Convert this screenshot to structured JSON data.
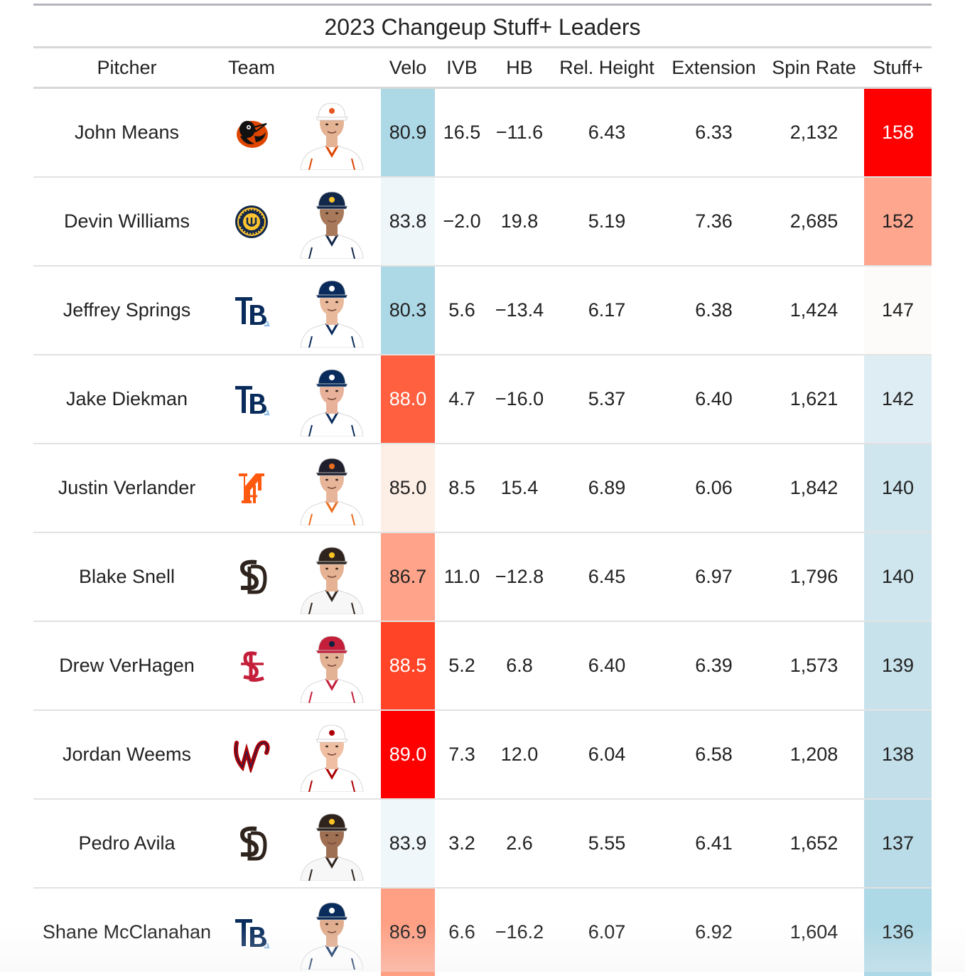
{
  "title": "2023 Changeup Stuff+ Leaders",
  "columns": {
    "pitcher": "Pitcher",
    "team": "Team",
    "headshot": "",
    "velo": "Velo",
    "ivb": "IVB",
    "hb": "HB",
    "rel_height": "Rel. Height",
    "extension": "Extension",
    "spin_rate": "Spin Rate",
    "stuff_plus": "Stuff+"
  },
  "colors": {
    "velo_scale_low": "#add8e6",
    "velo_scale_high": "#ff0000",
    "stuff_scale_low": "#add8e6",
    "stuff_scale_high": "#ff0000"
  },
  "rows": [
    {
      "pitcher": "John Means",
      "team_icon": "orioles-logo-icon",
      "velo": "80.9",
      "ivb": "16.5",
      "hb": "−11.6",
      "rel_height": "6.43",
      "extension": "6.33",
      "spin_rate": "2,132",
      "stuff_plus": "158",
      "velo_bg": "#add8e6",
      "velo_text": "#222222",
      "stuff_bg": "#ff0000",
      "stuff_text": "#ffffff",
      "cap": "#ffffff",
      "capmark": "#e4561f",
      "jersey": "#ffffff",
      "trim": "#df4601",
      "skin": "#e3b394"
    },
    {
      "pitcher": "Devin Williams",
      "team_icon": "brewers-logo-icon",
      "velo": "83.8",
      "ivb": "−2.0",
      "hb": "19.8",
      "rel_height": "5.19",
      "extension": "7.36",
      "spin_rate": "2,685",
      "stuff_plus": "152",
      "velo_bg": "#eef6f9",
      "velo_text": "#222222",
      "stuff_bg": "#ffa68f",
      "stuff_text": "#222222",
      "cap": "#12284b",
      "capmark": "#ffc52f",
      "jersey": "#ffffff",
      "trim": "#12284b",
      "skin": "#a8795a"
    },
    {
      "pitcher": "Jeffrey Springs",
      "team_icon": "rays-logo-icon",
      "velo": "80.3",
      "ivb": "5.6",
      "hb": "−13.4",
      "rel_height": "6.17",
      "extension": "6.38",
      "spin_rate": "1,424",
      "stuff_plus": "147",
      "velo_bg": "#add8e6",
      "velo_text": "#222222",
      "stuff_bg": "#fdfbf9",
      "stuff_text": "#222222",
      "cap": "#092c5c",
      "capmark": "#ffffff",
      "jersey": "#ffffff",
      "trim": "#092c5c",
      "skin": "#e8b99a"
    },
    {
      "pitcher": "Jake Diekman",
      "team_icon": "rays-logo-icon",
      "velo": "88.0",
      "ivb": "4.7",
      "hb": "−16.0",
      "rel_height": "5.37",
      "extension": "6.40",
      "spin_rate": "1,621",
      "stuff_plus": "142",
      "velo_bg": "#ff6040",
      "velo_text": "#ffffff",
      "stuff_bg": "#deedf3",
      "stuff_text": "#222222",
      "cap": "#092c5c",
      "capmark": "#ffffff",
      "jersey": "#ffffff",
      "trim": "#092c5c",
      "skin": "#e8b199"
    },
    {
      "pitcher": "Justin Verlander",
      "team_icon": "mets-logo-icon",
      "velo": "85.0",
      "ivb": "8.5",
      "hb": "15.4",
      "rel_height": "6.89",
      "extension": "6.06",
      "spin_rate": "1,842",
      "stuff_plus": "140",
      "velo_bg": "#fdeee6",
      "velo_text": "#222222",
      "stuff_bg": "#cfe6ee",
      "stuff_text": "#222222",
      "cap": "#1f1f2e",
      "capmark": "#eb6e1f",
      "jersey": "#ffffff",
      "trim": "#eb6e1f",
      "skin": "#e7b69a"
    },
    {
      "pitcher": "Blake Snell",
      "team_icon": "padres-logo-icon",
      "velo": "86.7",
      "ivb": "11.0",
      "hb": "−12.8",
      "rel_height": "6.45",
      "extension": "6.97",
      "spin_rate": "1,796",
      "stuff_plus": "140",
      "velo_bg": "#ffa48a",
      "velo_text": "#222222",
      "stuff_bg": "#cfe6ee",
      "stuff_text": "#222222",
      "cap": "#2f241d",
      "capmark": "#ffc425",
      "jersey": "#f7f7f7",
      "trim": "#2f241d",
      "skin": "#e5b394"
    },
    {
      "pitcher": "Drew VerHagen",
      "team_icon": "cardinals-logo-icon",
      "velo": "88.5",
      "ivb": "5.2",
      "hb": "6.8",
      "rel_height": "6.40",
      "extension": "6.39",
      "spin_rate": "1,573",
      "stuff_plus": "139",
      "velo_bg": "#ff4427",
      "velo_text": "#ffffff",
      "stuff_bg": "#c8e2ec",
      "stuff_text": "#222222",
      "cap": "#c41e3a",
      "capmark": "#0c2340",
      "jersey": "#ffffff",
      "trim": "#c41e3a",
      "skin": "#e3b193"
    },
    {
      "pitcher": "Jordan Weems",
      "team_icon": "nationals-logo-icon",
      "velo": "89.0",
      "ivb": "7.3",
      "hb": "12.0",
      "rel_height": "6.04",
      "extension": "6.58",
      "spin_rate": "1,208",
      "stuff_plus": "138",
      "velo_bg": "#ff0000",
      "velo_text": "#ffffff",
      "stuff_bg": "#c2dfea",
      "stuff_text": "#222222",
      "cap": "#ffffff",
      "capmark": "#ab0003",
      "jersey": "#ffffff",
      "trim": "#ab0003",
      "skin": "#f0bfa3"
    },
    {
      "pitcher": "Pedro Avila",
      "team_icon": "padres-logo-icon",
      "velo": "83.9",
      "ivb": "3.2",
      "hb": "2.6",
      "rel_height": "5.55",
      "extension": "6.41",
      "spin_rate": "1,652",
      "stuff_plus": "137",
      "velo_bg": "#f0f7fa",
      "velo_text": "#222222",
      "stuff_bg": "#badbe8",
      "stuff_text": "#222222",
      "cap": "#2f241d",
      "capmark": "#ffc425",
      "jersey": "#f7f7f7",
      "trim": "#2f241d",
      "skin": "#9e6f52"
    },
    {
      "pitcher": "Shane McClanahan",
      "team_icon": "rays-logo-icon",
      "velo": "86.9",
      "ivb": "6.6",
      "hb": "−16.2",
      "rel_height": "6.07",
      "extension": "6.92",
      "spin_rate": "1,604",
      "stuff_plus": "136",
      "velo_bg": "#ffa085",
      "velo_text": "#222222",
      "stuff_bg": "#add8e6",
      "stuff_text": "#222222",
      "cap": "#092c5c",
      "capmark": "#ffffff",
      "jersey": "#ffffff",
      "trim": "#092c5c",
      "skin": "#e0ac8d"
    }
  ]
}
